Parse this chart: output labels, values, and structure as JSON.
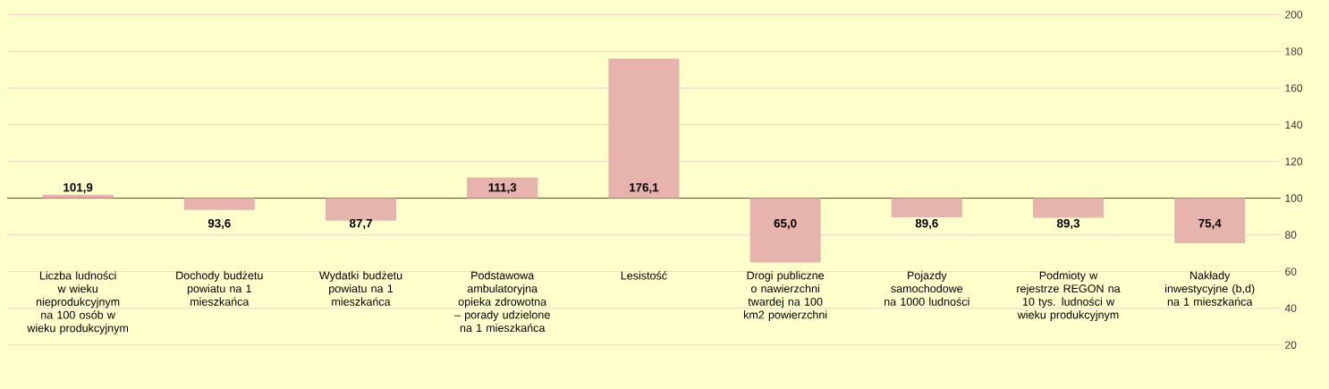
{
  "chart_data": {
    "type": "bar",
    "categories": [
      "Liczba ludności w wieku nieprodukcyjnym na 100 osób w wieku produkcyjnym",
      "Dochody budżetu powiatu na 1 mieszkańca",
      "Wydatki budżetu powiatu na 1 mieszkańca",
      "Podstawowa ambulatoryjna opieka zdrowotna – porady udzielone na 1 mieszkańca",
      "Lesistość",
      "Drogi publiczne o nawierzchni twardej na 100 km2 powierzchni",
      "Pojazdy samochodowe na 1000 ludności",
      "Podmioty w rejestrze REGON na 10 tys. ludności w wieku produkcyjnym",
      "Nakłady inwestycyjne (b,d) na 1 mieszkańca"
    ],
    "base": [
      100,
      100,
      100,
      100,
      100,
      100,
      100,
      100,
      100
    ],
    "values": [
      1.9,
      -6.4,
      -12.3,
      11.3,
      76.1,
      -35.0,
      -10.4,
      -10.7,
      -24.6
    ],
    "value_labels": [
      "101,9",
      "93,6",
      "87,7",
      "111,3",
      "176,1",
      "65,0",
      "89,6",
      "89,3",
      "75,4"
    ],
    "color": "#e6b4ac",
    "ylim": [
      -4,
      208
    ],
    "yticks": [
      20,
      40,
      60,
      80,
      100,
      120,
      140,
      160,
      180,
      200
    ],
    "grid": "y",
    "ref_lines": [
      {
        "axis": "y",
        "value": 100,
        "color": "#404040"
      }
    ]
  }
}
